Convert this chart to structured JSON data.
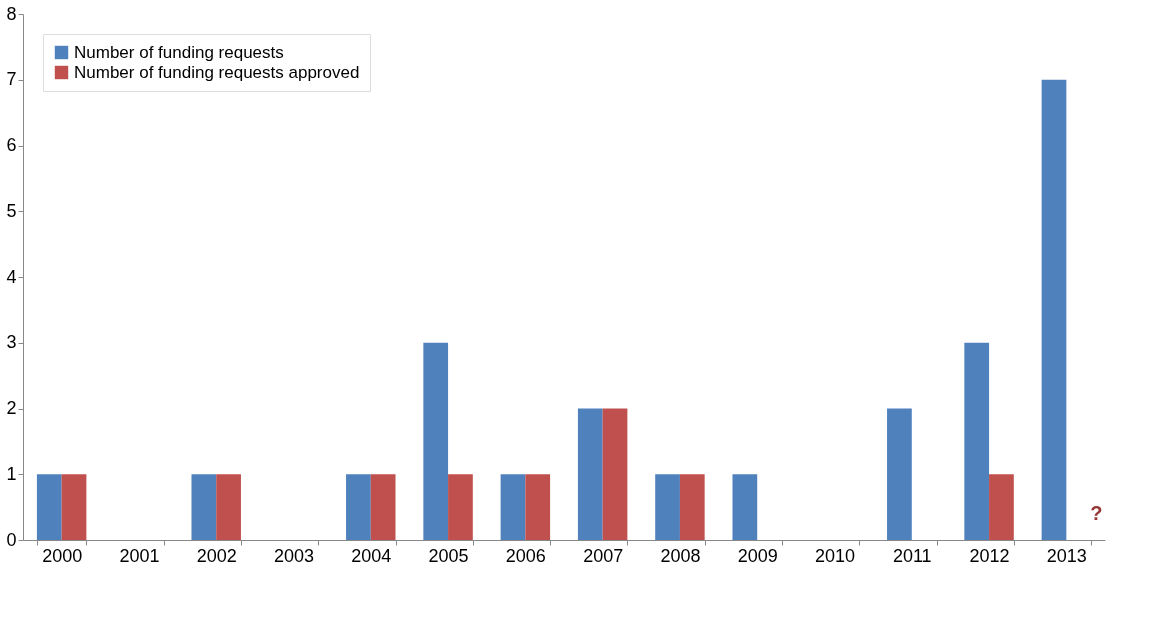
{
  "chart_data": {
    "type": "bar",
    "categories": [
      "2000",
      "2001",
      "2002",
      "2003",
      "2004",
      "2005",
      "2006",
      "2007",
      "2008",
      "2009",
      "2010",
      "2011",
      "2012",
      "2013"
    ],
    "series": [
      {
        "name": "Number of funding requests",
        "color": "#4f81bd",
        "values": [
          1,
          0,
          1,
          0,
          1,
          3,
          1,
          2,
          1,
          1,
          0,
          2,
          3,
          7
        ]
      },
      {
        "name": "Number of funding requests approved",
        "color": "#c0504d",
        "values": [
          1,
          0,
          1,
          0,
          1,
          1,
          1,
          2,
          1,
          0,
          0,
          0,
          1,
          null
        ]
      }
    ],
    "annotations": [
      {
        "text": "?",
        "x": "2013",
        "y": 0.4
      }
    ],
    "ylim": [
      0,
      8
    ],
    "yticks": [
      0,
      1,
      2,
      3,
      4,
      5,
      6,
      7,
      8
    ],
    "grid": false,
    "legend": "top left"
  }
}
